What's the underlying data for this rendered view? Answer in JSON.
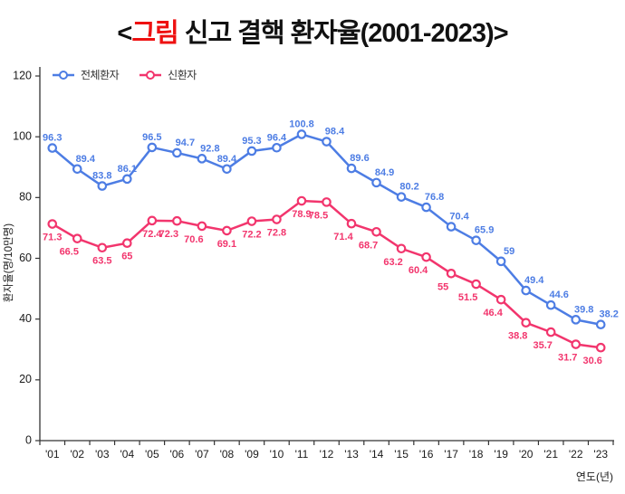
{
  "title": {
    "part1": "<",
    "part2": "그림",
    "part3": " 신고 결핵 환자율(2001-2023)>",
    "accent_color": "#ee1111"
  },
  "chart_data": {
    "type": "line",
    "categories": [
      "'01",
      "'02",
      "'03",
      "'04",
      "'05",
      "'06",
      "'07",
      "'08",
      "'09",
      "'10",
      "'11",
      "'12",
      "'13",
      "'14",
      "'15",
      "'16",
      "'17",
      "'18",
      "'19",
      "'20",
      "'21",
      "'22",
      "'23"
    ],
    "series": [
      {
        "name": "전체환자",
        "color": "#4d7de4",
        "marker": "open-circle",
        "label_position": "above",
        "values": [
          96.3,
          89.4,
          83.8,
          86.1,
          96.5,
          94.7,
          92.8,
          89.4,
          95.3,
          96.4,
          100.8,
          98.4,
          89.6,
          84.9,
          80.2,
          76.8,
          70.4,
          65.9,
          59,
          49.4,
          44.6,
          39.8,
          38.2
        ]
      },
      {
        "name": "신환자",
        "color": "#f2356d",
        "marker": "open-circle",
        "label_position": "below",
        "values": [
          71.3,
          66.5,
          63.5,
          65,
          72.4,
          72.3,
          70.6,
          69.1,
          72.2,
          72.8,
          78.9,
          78.5,
          71.4,
          68.7,
          63.2,
          60.4,
          55,
          51.5,
          46.4,
          38.8,
          35.7,
          31.7,
          30.6
        ]
      }
    ],
    "xlabel": "연도(년)",
    "ylabel": "환자율(명/10만명)",
    "ylim": [
      0,
      120
    ],
    "yticks": [
      0,
      20,
      40,
      60,
      80,
      100,
      120
    ],
    "legend_position": "top-left",
    "grid": false,
    "axis_color": "#333333",
    "tick_label_color": "#1a1a1a"
  }
}
